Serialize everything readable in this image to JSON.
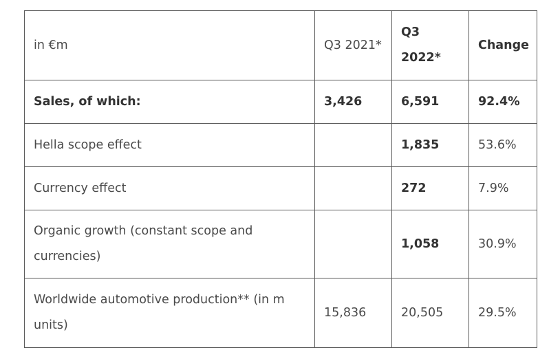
{
  "table": {
    "header": {
      "unit": "in €m",
      "col_q3_2021": "Q3 2021*",
      "col_q3_2022": "Q3 2022*",
      "col_change": "Change"
    },
    "rows": [
      {
        "label": "Sales, of which:",
        "q3_2021": "3,426",
        "q3_2022": "6,591",
        "change": "92.4%"
      },
      {
        "label": "Hella scope effect",
        "q3_2021": "",
        "q3_2022": "1,835",
        "change": "53.6%"
      },
      {
        "label": "Currency effect",
        "q3_2021": "",
        "q3_2022": "272",
        "change": "7.9%"
      },
      {
        "label": "Organic growth (constant scope and currencies)",
        "q3_2021": "",
        "q3_2022": "1,058",
        "change": "30.9%"
      },
      {
        "label": "Worldwide automotive production** (in m units)",
        "q3_2021": "15,836",
        "q3_2022": "20,505",
        "change": "29.5%"
      }
    ]
  }
}
